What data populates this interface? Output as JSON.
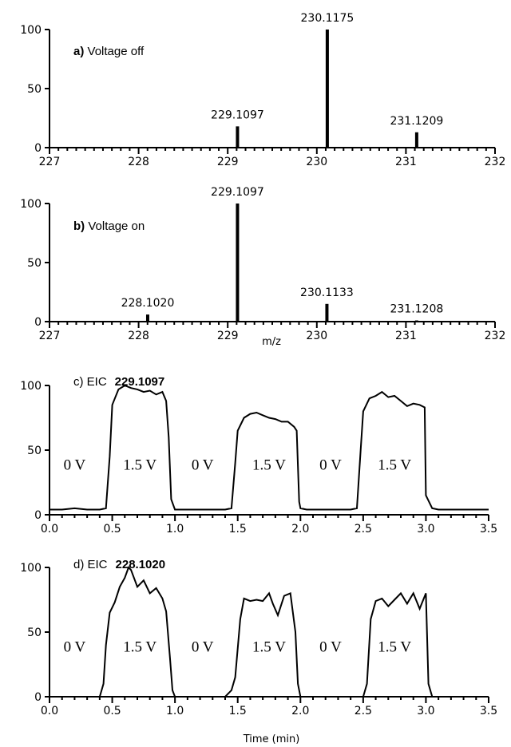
{
  "chart_data": [
    {
      "type": "bar",
      "panel_letter": "a)",
      "title": "Voltage off",
      "xlim": [
        227,
        232
      ],
      "ylim": [
        0,
        100
      ],
      "xticks": [
        "227",
        "228",
        "229",
        "230",
        "231",
        "232"
      ],
      "yticks": [
        "0",
        "50",
        "100"
      ],
      "xlabel": "",
      "peaks": [
        {
          "x": 229.1097,
          "y": 18,
          "label": "229.1097"
        },
        {
          "x": 230.1175,
          "y": 100,
          "label": "230.1175"
        },
        {
          "x": 231.1209,
          "y": 13,
          "label": "231.1209"
        }
      ]
    },
    {
      "type": "bar",
      "panel_letter": "b)",
      "title": "Voltage on",
      "xlim": [
        227,
        232
      ],
      "ylim": [
        0,
        100
      ],
      "xticks": [
        "227",
        "228",
        "229",
        "230",
        "231",
        "232"
      ],
      "yticks": [
        "0",
        "50",
        "100"
      ],
      "xlabel": "m/z",
      "peaks": [
        {
          "x": 228.102,
          "y": 6,
          "label": "228.1020"
        },
        {
          "x": 229.1097,
          "y": 100,
          "label": "229.1097"
        },
        {
          "x": 230.1133,
          "y": 15,
          "label": "230.1133"
        },
        {
          "x": 231.1208,
          "y": 1,
          "label": "231.1208"
        }
      ]
    },
    {
      "type": "line",
      "title_prefix": "c) EIC",
      "title_value": "229.1097",
      "xlim": [
        0,
        3.5
      ],
      "ylim": [
        0,
        100
      ],
      "xticks": [
        "0.0",
        "0.5",
        "1.0",
        "1.5",
        "2.0",
        "2.5",
        "3.0",
        "3.5"
      ],
      "yticks": [
        "0",
        "50",
        "100"
      ],
      "xlabel": "",
      "regions": [
        {
          "x": 0.2,
          "label": "0 V"
        },
        {
          "x": 0.72,
          "label": "1.5 V"
        },
        {
          "x": 1.22,
          "label": "0 V"
        },
        {
          "x": 1.75,
          "label": "1.5 V"
        },
        {
          "x": 2.24,
          "label": "0 V"
        },
        {
          "x": 2.75,
          "label": "1.5 V"
        }
      ],
      "x": [
        0.0,
        0.1,
        0.2,
        0.3,
        0.4,
        0.45,
        0.48,
        0.5,
        0.55,
        0.6,
        0.65,
        0.7,
        0.75,
        0.8,
        0.85,
        0.9,
        0.93,
        0.95,
        0.97,
        1.0,
        1.1,
        1.2,
        1.3,
        1.4,
        1.45,
        1.48,
        1.5,
        1.55,
        1.6,
        1.65,
        1.7,
        1.75,
        1.8,
        1.85,
        1.9,
        1.95,
        1.97,
        1.99,
        2.0,
        2.05,
        2.1,
        2.2,
        2.3,
        2.4,
        2.45,
        2.48,
        2.5,
        2.55,
        2.6,
        2.65,
        2.7,
        2.75,
        2.8,
        2.85,
        2.9,
        2.95,
        2.99,
        3.0,
        3.05,
        3.1,
        3.2,
        3.3,
        3.4,
        3.5
      ],
      "y": [
        4,
        4,
        5,
        4,
        4,
        5,
        45,
        85,
        97,
        100,
        98,
        97,
        95,
        96,
        93,
        95,
        88,
        60,
        12,
        4,
        4,
        4,
        4,
        4,
        5,
        40,
        65,
        75,
        78,
        79,
        77,
        75,
        74,
        72,
        72,
        68,
        65,
        10,
        5,
        4,
        4,
        4,
        4,
        4,
        5,
        50,
        80,
        90,
        92,
        95,
        91,
        92,
        88,
        84,
        86,
        85,
        83,
        15,
        5,
        4,
        4,
        4,
        4,
        4
      ]
    },
    {
      "type": "line",
      "title_prefix": "d) EIC",
      "title_value": "228.1020",
      "xlim": [
        0,
        3.5
      ],
      "ylim": [
        0,
        100
      ],
      "xticks": [
        "0.0",
        "0.5",
        "1.0",
        "1.5",
        "2.0",
        "2.5",
        "3.0",
        "3.5"
      ],
      "yticks": [
        "0",
        "50",
        "100"
      ],
      "xlabel": "Time (min)",
      "regions": [
        {
          "x": 0.2,
          "label": "0 V"
        },
        {
          "x": 0.72,
          "label": "1.5 V"
        },
        {
          "x": 1.22,
          "label": "0 V"
        },
        {
          "x": 1.75,
          "label": "1.5 V"
        },
        {
          "x": 2.24,
          "label": "0 V"
        },
        {
          "x": 2.75,
          "label": "1.5 V"
        }
      ],
      "x": [
        0.0,
        0.1,
        0.2,
        0.3,
        0.4,
        0.43,
        0.45,
        0.48,
        0.52,
        0.56,
        0.6,
        0.63,
        0.65,
        0.7,
        0.75,
        0.8,
        0.85,
        0.9,
        0.93,
        0.96,
        0.98,
        1.0,
        1.1,
        1.2,
        1.3,
        1.4,
        1.45,
        1.48,
        1.52,
        1.55,
        1.6,
        1.65,
        1.7,
        1.75,
        1.78,
        1.82,
        1.87,
        1.92,
        1.96,
        1.98,
        2.0,
        2.1,
        2.2,
        2.3,
        2.4,
        2.5,
        2.53,
        2.56,
        2.6,
        2.65,
        2.7,
        2.75,
        2.8,
        2.85,
        2.9,
        2.95,
        3.0,
        3.02,
        3.05,
        3.1,
        3.2,
        3.3,
        3.4,
        3.5
      ],
      "y": [
        0,
        0,
        0,
        0,
        0,
        10,
        40,
        65,
        73,
        85,
        92,
        100,
        98,
        85,
        90,
        80,
        84,
        76,
        66,
        30,
        5,
        0,
        0,
        0,
        0,
        0,
        5,
        15,
        60,
        76,
        74,
        75,
        74,
        80,
        72,
        63,
        78,
        80,
        50,
        10,
        0,
        0,
        0,
        0,
        0,
        0,
        10,
        60,
        74,
        76,
        70,
        75,
        80,
        72,
        80,
        68,
        80,
        10,
        0,
        0,
        0,
        0,
        0,
        0
      ]
    }
  ]
}
